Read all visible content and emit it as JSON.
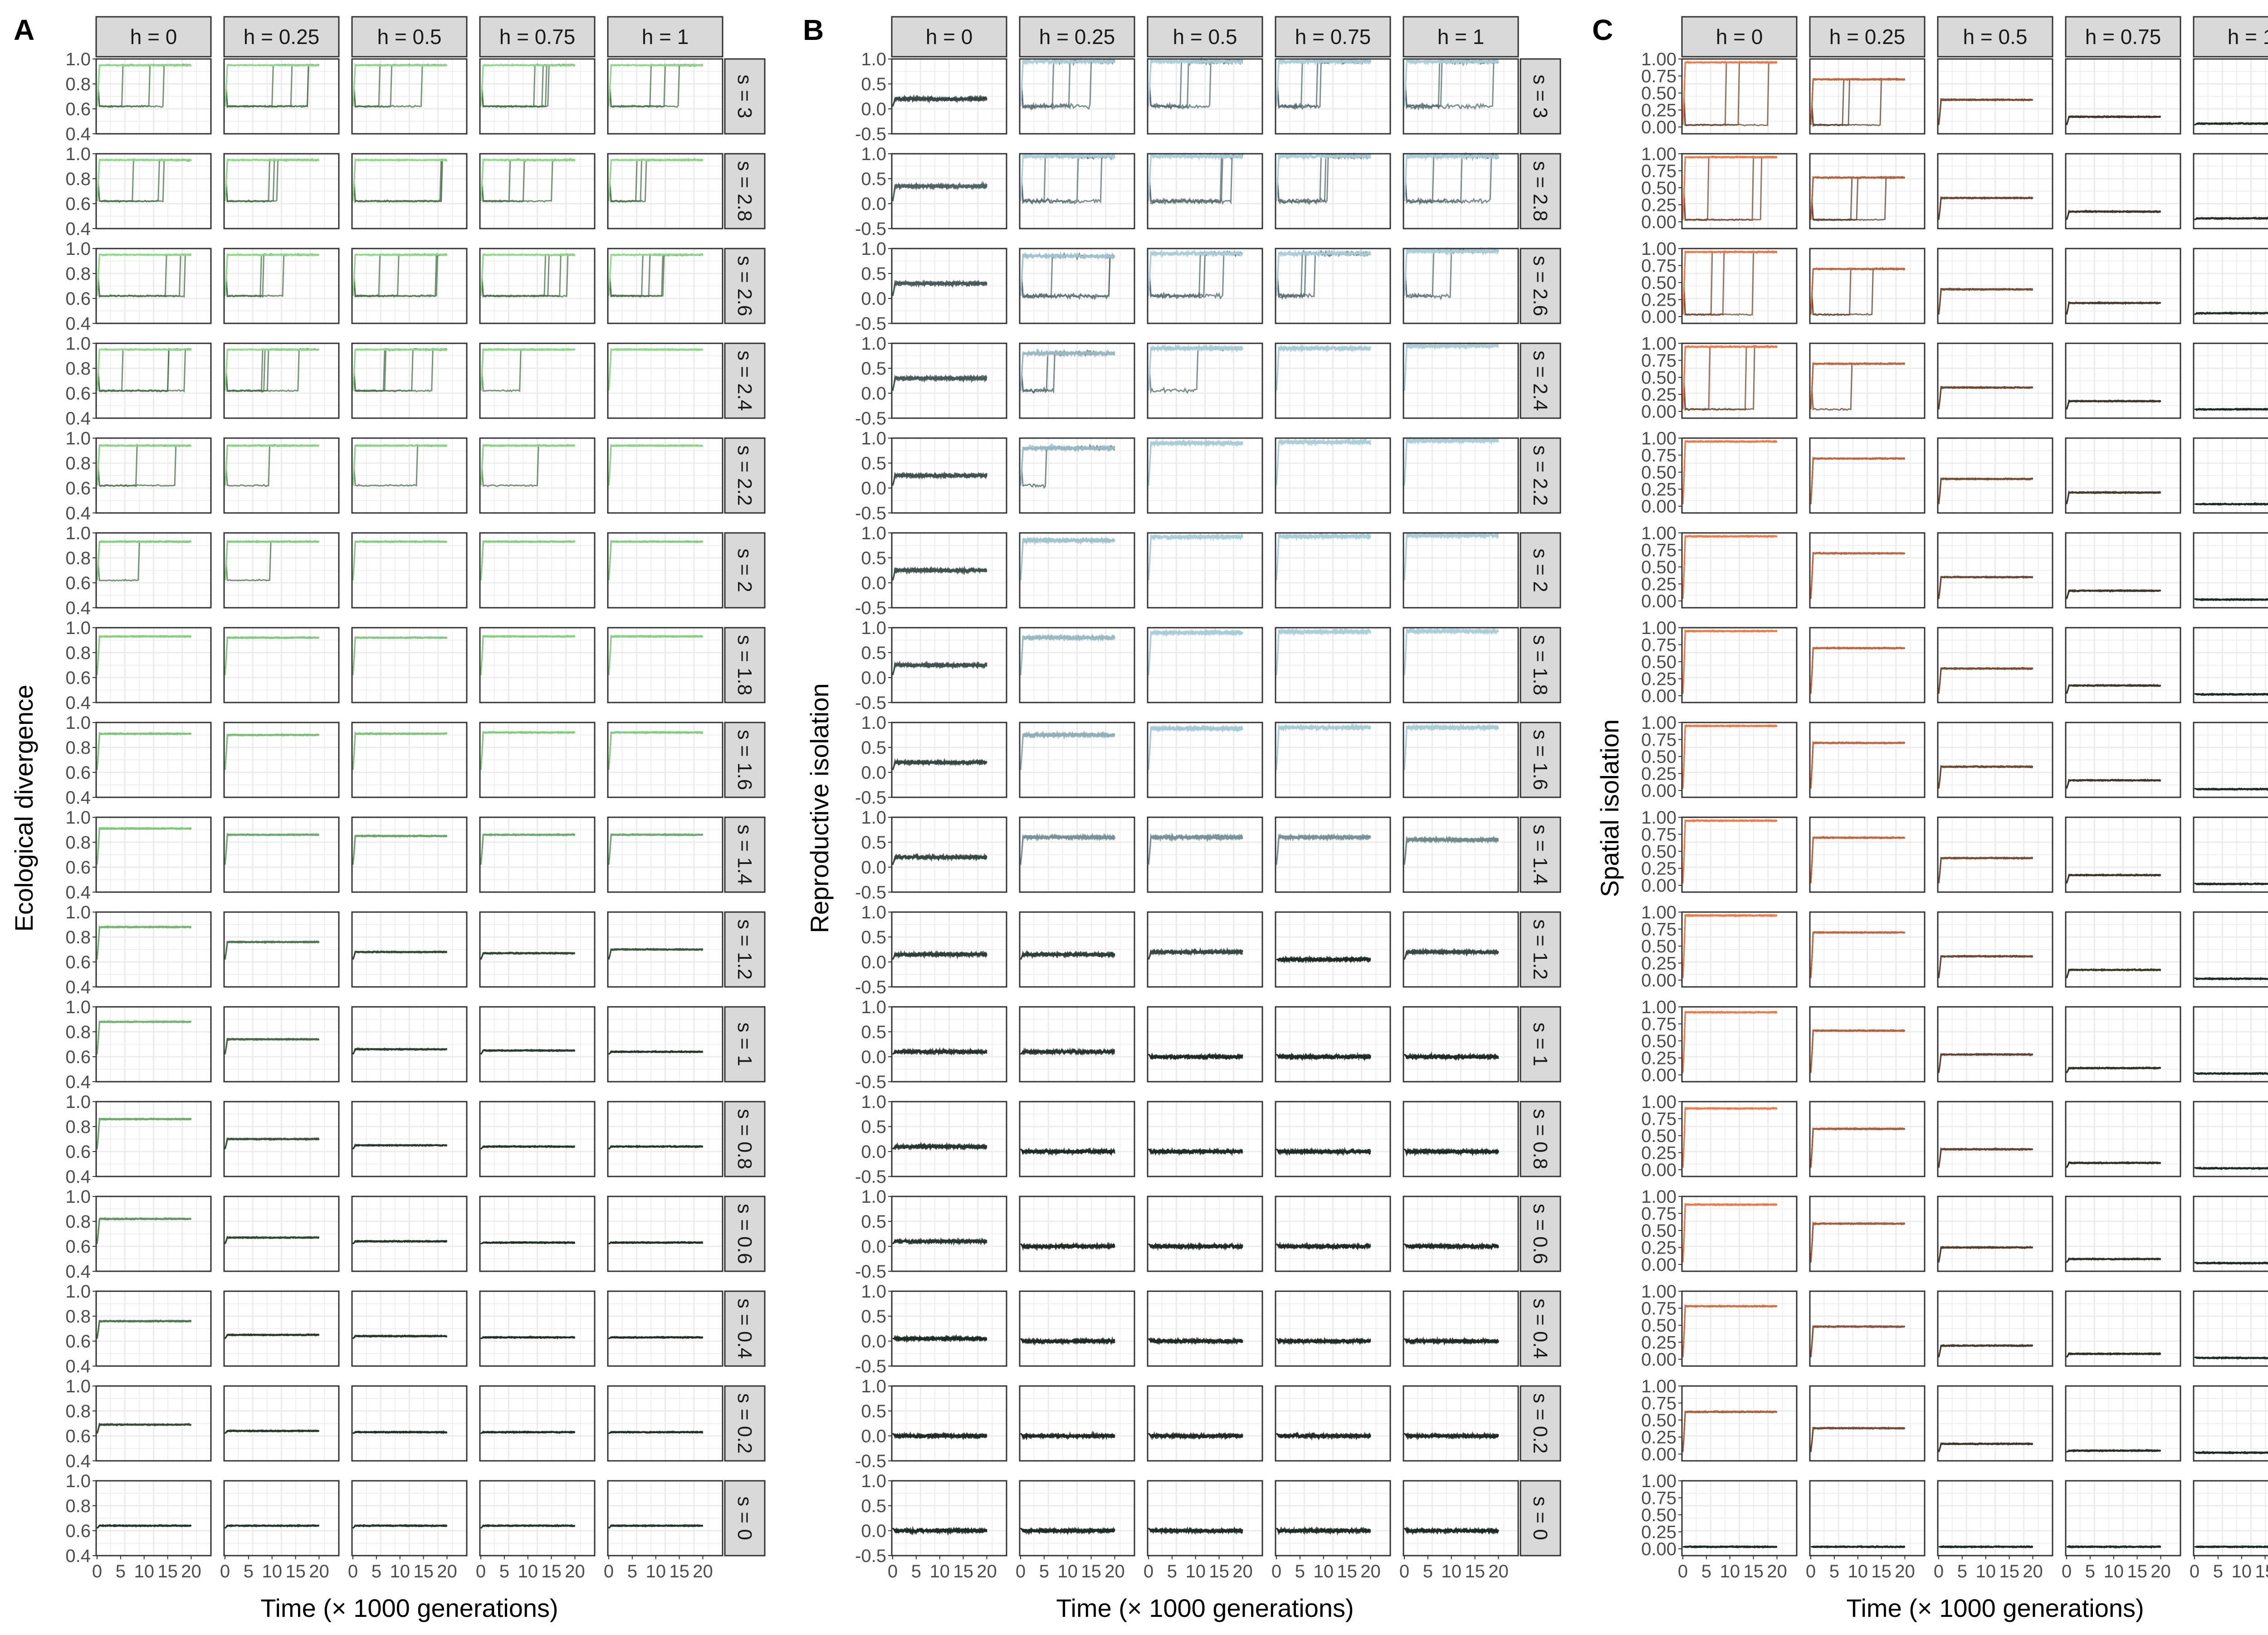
{
  "figure": {
    "panels": [
      "A",
      "B",
      "C"
    ],
    "x_axis_title": "Time (× 1000 generations)",
    "x_ticks": [
      "0",
      "5",
      "10",
      "15",
      "20"
    ],
    "column_labels": [
      "h = 0",
      "h = 0.25",
      "h = 0.5",
      "h = 0.75",
      "h = 1"
    ],
    "row_labels": [
      "s = 3",
      "s = 2.8",
      "s = 2.6",
      "s = 2.4",
      "s = 2.2",
      "s = 2",
      "s = 1.8",
      "s = 1.6",
      "s = 1.4",
      "s = 1.2",
      "s = 1",
      "s = 0.8",
      "s = 0.6",
      "s = 0.4",
      "s = 0.2",
      "s = 0"
    ]
  },
  "colors": {
    "strip_fill": "#d9d9d9",
    "grid": "#ebebeb",
    "panel_border": "#333333",
    "ecological": "#90e08c",
    "reproductive": "#a9cdd9",
    "spatial": "#f07a4a",
    "dark_lines": "#1f2a24"
  },
  "chart_data": [
    {
      "panel": "A",
      "type": "line",
      "title": "",
      "ylabel": "Ecological divergence",
      "xlabel": "Time (× 1000 generations)",
      "xlim": [
        0,
        20
      ],
      "ylim": [
        0.4,
        1.0
      ],
      "y_ticks": [
        "0.4",
        "0.6",
        "0.8",
        "1.0"
      ],
      "grid": true,
      "facets": "rows: s = 3 … 0; columns: h = 0 … 1",
      "plateau_level": [
        [
          0.95,
          0.95,
          0.95,
          0.95,
          0.95
        ],
        [
          0.95,
          0.95,
          0.95,
          0.95,
          0.95
        ],
        [
          0.95,
          0.95,
          0.95,
          0.95,
          0.95
        ],
        [
          0.95,
          0.95,
          0.95,
          0.95,
          0.95
        ],
        [
          0.94,
          0.94,
          0.94,
          0.94,
          0.94
        ],
        [
          0.93,
          0.93,
          0.93,
          0.93,
          0.93
        ],
        [
          0.93,
          0.92,
          0.92,
          0.93,
          0.93
        ],
        [
          0.91,
          0.9,
          0.91,
          0.92,
          0.92
        ],
        [
          0.91,
          0.86,
          0.85,
          0.86,
          0.86
        ],
        [
          0.88,
          0.76,
          0.68,
          0.67,
          0.7
        ],
        [
          0.88,
          0.74,
          0.66,
          0.65,
          0.64
        ],
        [
          0.86,
          0.7,
          0.65,
          0.64,
          0.64
        ],
        [
          0.82,
          0.67,
          0.64,
          0.63,
          0.63
        ],
        [
          0.76,
          0.65,
          0.64,
          0.63,
          0.63
        ],
        [
          0.69,
          0.64,
          0.63,
          0.63,
          0.63
        ],
        [
          0.64,
          0.64,
          0.64,
          0.64,
          0.64
        ]
      ],
      "baseline": 0.62,
      "jump_fraction": [
        [
          0.3,
          0.4,
          0.3,
          0.4,
          0.35
        ],
        [
          0.3,
          0.3,
          0.3,
          0.35,
          0.3
        ],
        [
          0.35,
          0.3,
          0.4,
          0.4,
          0.4
        ],
        [
          0.5,
          0.45,
          0.4,
          0.1,
          0.0
        ],
        [
          0.15,
          0.1,
          0.05,
          0.05,
          0.0
        ],
        [
          0.05,
          0.05,
          0.0,
          0.0,
          0.0
        ],
        [
          0.0,
          0.0,
          0.0,
          0.0,
          0.0
        ],
        [
          0.0,
          0.0,
          0.0,
          0.0,
          0.0
        ],
        [
          0.0,
          0.0,
          0.0,
          0.0,
          0.0
        ],
        [
          0.0,
          0.0,
          0.0,
          0.0,
          0.0
        ],
        [
          0.0,
          0.0,
          0.0,
          0.0,
          0.0
        ],
        [
          0.0,
          0.0,
          0.0,
          0.0,
          0.0
        ],
        [
          0.0,
          0.0,
          0.0,
          0.0,
          0.0
        ],
        [
          0.0,
          0.0,
          0.0,
          0.0,
          0.0
        ],
        [
          0.0,
          0.0,
          0.0,
          0.0,
          0.0
        ],
        [
          0.0,
          0.0,
          0.0,
          0.0,
          0.0
        ]
      ]
    },
    {
      "panel": "B",
      "type": "line",
      "title": "",
      "ylabel": "Reproductive isolation",
      "xlabel": "Time (× 1000 generations)",
      "xlim": [
        0,
        20
      ],
      "ylim": [
        -0.5,
        1.0
      ],
      "y_ticks": [
        "-0.5",
        "0.0",
        "0.5",
        "1.0"
      ],
      "grid": true,
      "facets": "rows: s = 3 … 0; columns: h = 0 … 1",
      "plateau_level": [
        [
          0.2,
          0.95,
          0.95,
          0.95,
          0.95
        ],
        [
          0.35,
          0.95,
          0.95,
          0.95,
          0.95
        ],
        [
          0.3,
          0.85,
          0.9,
          0.9,
          0.95
        ],
        [
          0.3,
          0.8,
          0.9,
          0.9,
          0.95
        ],
        [
          0.25,
          0.8,
          0.9,
          0.92,
          0.95
        ],
        [
          0.25,
          0.85,
          0.92,
          0.93,
          0.95
        ],
        [
          0.25,
          0.8,
          0.9,
          0.92,
          0.93
        ],
        [
          0.2,
          0.75,
          0.88,
          0.9,
          0.9
        ],
        [
          0.2,
          0.6,
          0.6,
          0.6,
          0.55
        ],
        [
          0.15,
          0.15,
          0.2,
          0.05,
          0.2
        ],
        [
          0.1,
          0.1,
          0.0,
          0.0,
          0.0
        ],
        [
          0.1,
          0.0,
          0.0,
          0.0,
          0.0
        ],
        [
          0.1,
          0.0,
          0.0,
          0.0,
          0.0
        ],
        [
          0.05,
          0.0,
          0.0,
          0.0,
          0.0
        ],
        [
          0.0,
          0.0,
          0.0,
          0.0,
          0.0
        ],
        [
          0.0,
          0.0,
          0.0,
          0.0,
          0.0
        ]
      ],
      "baseline": 0.05,
      "jump_fraction": [
        [
          0.0,
          0.3,
          0.3,
          0.35,
          0.3
        ],
        [
          0.0,
          0.3,
          0.3,
          0.35,
          0.3
        ],
        [
          0.0,
          0.35,
          0.3,
          0.35,
          0.2
        ],
        [
          0.0,
          0.15,
          0.1,
          0.0,
          0.0
        ],
        [
          0.0,
          0.05,
          0.0,
          0.0,
          0.0
        ],
        [
          0.0,
          0.0,
          0.0,
          0.0,
          0.0
        ],
        [
          0.0,
          0.0,
          0.0,
          0.0,
          0.0
        ],
        [
          0.0,
          0.0,
          0.0,
          0.0,
          0.0
        ],
        [
          0.0,
          0.0,
          0.0,
          0.0,
          0.0
        ],
        [
          0.0,
          0.0,
          0.0,
          0.0,
          0.0
        ],
        [
          0.0,
          0.0,
          0.0,
          0.0,
          0.0
        ],
        [
          0.0,
          0.0,
          0.0,
          0.0,
          0.0
        ],
        [
          0.0,
          0.0,
          0.0,
          0.0,
          0.0
        ],
        [
          0.0,
          0.0,
          0.0,
          0.0,
          0.0
        ],
        [
          0.0,
          0.0,
          0.0,
          0.0,
          0.0
        ],
        [
          0.0,
          0.0,
          0.0,
          0.0,
          0.0
        ]
      ]
    },
    {
      "panel": "C",
      "type": "line",
      "title": "",
      "ylabel": "Spatial isolation",
      "xlabel": "Time (× 1000 generations)",
      "xlim": [
        0,
        20
      ],
      "ylim": [
        -0.1,
        1.0
      ],
      "y_ticks": [
        "0.00",
        "0.25",
        "0.50",
        "0.75",
        "1.00"
      ],
      "grid": true,
      "facets": "rows: s = 3 … 0; columns: h = 0 … 1",
      "plateau_level": [
        [
          0.95,
          0.7,
          0.4,
          0.15,
          0.05
        ],
        [
          0.95,
          0.65,
          0.35,
          0.15,
          0.05
        ],
        [
          0.95,
          0.7,
          0.4,
          0.2,
          0.05
        ],
        [
          0.95,
          0.7,
          0.35,
          0.15,
          0.03
        ],
        [
          0.95,
          0.7,
          0.4,
          0.2,
          0.03
        ],
        [
          0.95,
          0.7,
          0.35,
          0.15,
          0.02
        ],
        [
          0.95,
          0.7,
          0.4,
          0.15,
          0.02
        ],
        [
          0.95,
          0.7,
          0.35,
          0.15,
          0.02
        ],
        [
          0.95,
          0.7,
          0.4,
          0.15,
          0.02
        ],
        [
          0.95,
          0.7,
          0.35,
          0.15,
          0.02
        ],
        [
          0.92,
          0.65,
          0.3,
          0.1,
          0.02
        ],
        [
          0.9,
          0.6,
          0.3,
          0.1,
          0.02
        ],
        [
          0.88,
          0.6,
          0.25,
          0.08,
          0.02
        ],
        [
          0.78,
          0.48,
          0.2,
          0.08,
          0.02
        ],
        [
          0.62,
          0.38,
          0.15,
          0.05,
          0.02
        ],
        [
          0.03,
          0.03,
          0.03,
          0.03,
          0.03
        ]
      ],
      "baseline": 0.03,
      "jump_fraction": [
        [
          0.35,
          0.3,
          0.0,
          0.0,
          0.0
        ],
        [
          0.35,
          0.3,
          0.0,
          0.0,
          0.0
        ],
        [
          0.35,
          0.25,
          0.0,
          0.0,
          0.0
        ],
        [
          0.3,
          0.1,
          0.0,
          0.0,
          0.0
        ],
        [
          0.0,
          0.0,
          0.0,
          0.0,
          0.0
        ],
        [
          0.0,
          0.0,
          0.0,
          0.0,
          0.0
        ],
        [
          0.0,
          0.0,
          0.0,
          0.0,
          0.0
        ],
        [
          0.0,
          0.0,
          0.0,
          0.0,
          0.0
        ],
        [
          0.0,
          0.0,
          0.0,
          0.0,
          0.0
        ],
        [
          0.0,
          0.0,
          0.0,
          0.0,
          0.0
        ],
        [
          0.0,
          0.0,
          0.0,
          0.0,
          0.0
        ],
        [
          0.0,
          0.0,
          0.0,
          0.0,
          0.0
        ],
        [
          0.0,
          0.0,
          0.0,
          0.0,
          0.0
        ],
        [
          0.0,
          0.0,
          0.0,
          0.0,
          0.0
        ],
        [
          0.0,
          0.0,
          0.0,
          0.0,
          0.0
        ],
        [
          0.0,
          0.0,
          0.0,
          0.0,
          0.0
        ]
      ]
    }
  ]
}
